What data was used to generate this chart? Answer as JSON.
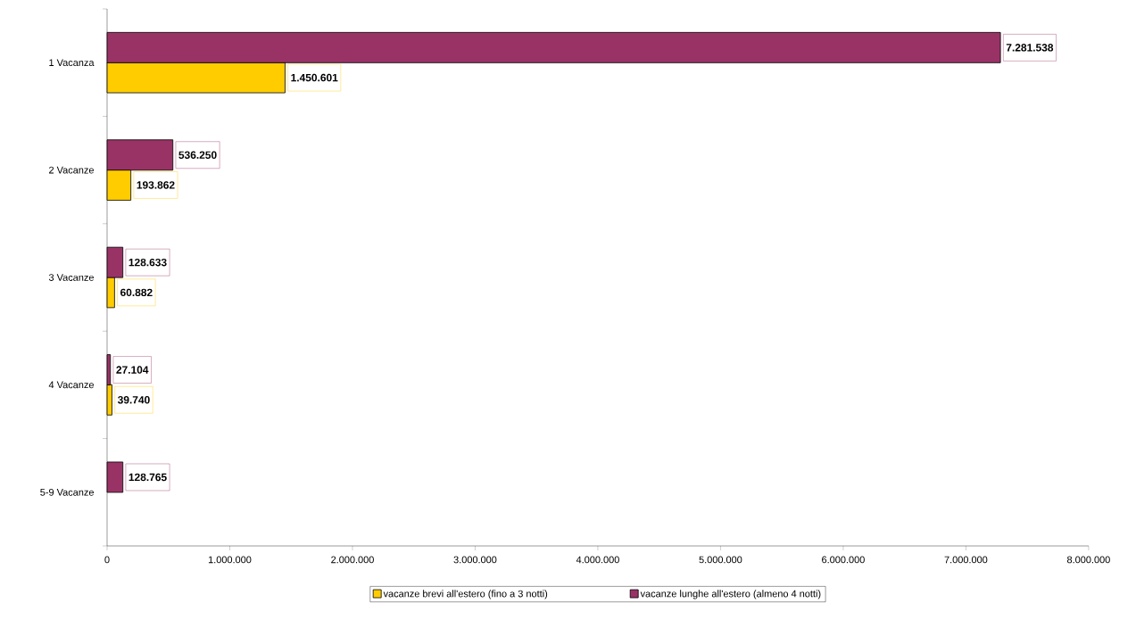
{
  "chart_data": {
    "type": "bar",
    "orientation": "horizontal",
    "categories": [
      "1 Vacanza",
      "2 Vacanze",
      "3 Vacanze",
      "4 Vacanze",
      "5-9 Vacanze"
    ],
    "series": [
      {
        "name": "vacanze brevi all'estero (fino a 3 notti)",
        "color": "#ffcc00",
        "values": [
          1450601,
          193862,
          60882,
          39740,
          null
        ],
        "value_labels": [
          "1.450.601",
          "193.862",
          "60.882",
          "39.740",
          null
        ]
      },
      {
        "name": "vacanze lunghe all'estero (almeno 4 notti)",
        "color": "#993366",
        "values": [
          7281538,
          536250,
          128633,
          27104,
          128765
        ],
        "value_labels": [
          "7.281.538",
          "536.250",
          "128.633",
          "27.104",
          "128.765"
        ]
      }
    ],
    "xlim": [
      0,
      8000000
    ],
    "xticks": [
      0,
      {
        "value": 1000000,
        "label": "1.000.000"
      },
      {
        "value": 2000000,
        "label": "2.000.000"
      },
      {
        "value": 3000000,
        "label": "3.000.000"
      },
      {
        "value": 4000000,
        "label": "4.000.000"
      },
      {
        "value": 5000000,
        "label": "5.000.000"
      },
      {
        "value": 6000000,
        "label": "6.000.000"
      },
      {
        "value": 7000000,
        "label": "7.000.000"
      },
      {
        "value": 8000000,
        "label": "8.000.000"
      }
    ],
    "grid": false,
    "legend": "bottom"
  }
}
